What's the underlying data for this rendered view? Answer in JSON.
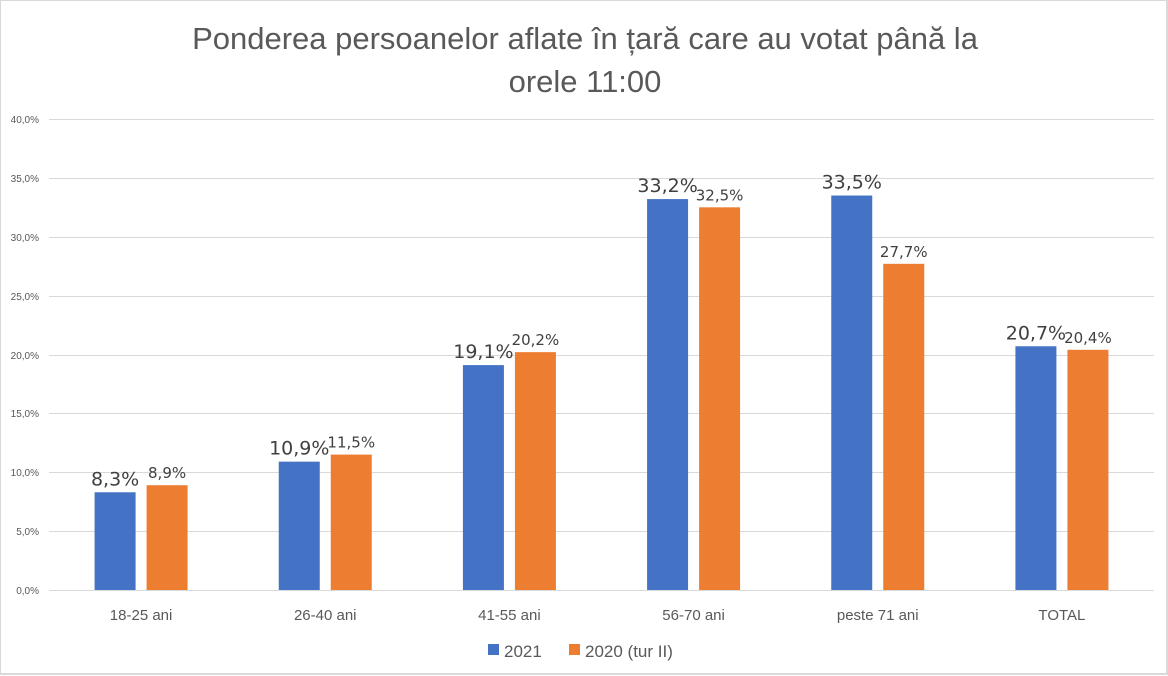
{
  "chart_data": {
    "type": "bar",
    "title_lines": [
      "Ponderea persoanelor aflate în țară care au votat până la",
      "orele 11:00"
    ],
    "xlabel": "",
    "ylabel": "",
    "categories": [
      "18-25 ani",
      "26-40 ani",
      "41-55 ani",
      "56-70 ani",
      "peste 71 ani",
      "TOTAL"
    ],
    "series": [
      {
        "name": "2021",
        "color": "#4472C4",
        "values": [
          8.3,
          10.9,
          19.1,
          33.2,
          33.5,
          20.7
        ],
        "labels": [
          "8,3%",
          "10,9%",
          "19,1%",
          "33,2%",
          "33,5%",
          "20,7%"
        ]
      },
      {
        "name": "2020 (tur II)",
        "color": "#ED7D31",
        "values": [
          8.9,
          11.5,
          20.2,
          32.5,
          27.7,
          20.4
        ],
        "labels": [
          "8,9%",
          "11,5%",
          "20,2%",
          "32,5%",
          "27,7%",
          "20,4%"
        ]
      }
    ],
    "ylim": [
      0,
      40
    ],
    "yticks": [
      0,
      5,
      10,
      15,
      20,
      25,
      30,
      35,
      40
    ],
    "ytick_labels": [
      "0,0%",
      "5,0%",
      "10,0%",
      "15,0%",
      "20,0%",
      "25,0%",
      "30,0%",
      "35,0%",
      "40,0%"
    ],
    "grid": true,
    "legend_position": "bottom"
  }
}
